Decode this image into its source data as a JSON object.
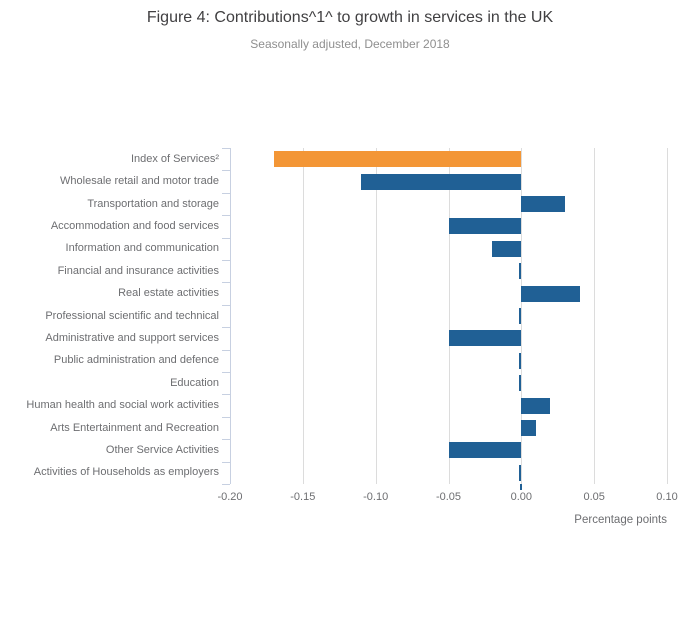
{
  "chart_data": {
    "type": "bar",
    "orientation": "horizontal",
    "title": "Figure 4: Contributions^1^ to growth in services in the UK",
    "subtitle": "Seasonally adjusted, December 2018",
    "categories": [
      "Index of Services²",
      "Wholesale retail and motor trade",
      "Transportation and storage",
      "Accommodation and food services",
      "Information and communication",
      "Financial and insurance activities",
      "Real estate activities",
      "Professional scientific and technical",
      "Administrative and support services",
      "Public administration and defence",
      "Education",
      "Human health and social work activities",
      "Arts Entertainment and Recreation",
      "Other Service Activities",
      "Activities of Households as employers"
    ],
    "values": [
      -0.17,
      -0.11,
      0.03,
      -0.05,
      -0.02,
      0.0,
      0.04,
      0.0,
      -0.05,
      0.0,
      0.0,
      0.02,
      0.01,
      -0.05,
      0.0
    ],
    "highlight_index": 0,
    "xlabel": "Percentage points",
    "xlim": [
      -0.2,
      0.1
    ],
    "xticks": [
      "-0.20",
      "-0.15",
      "-0.10",
      "-0.05",
      "0.00",
      "0.05",
      "0.10"
    ],
    "xtick_values": [
      -0.2,
      -0.15,
      -0.1,
      -0.05,
      0.0,
      0.05,
      0.1
    ],
    "grid": true,
    "legend": "none",
    "colors": {
      "bar": "#206095",
      "highlight": "#f39636",
      "gridline": "#dcdcdc",
      "axis": "#c7d0e1",
      "title_text": "#414042",
      "subtitle_text": "#8f8f8f",
      "label_text": "#6d6e71"
    }
  }
}
